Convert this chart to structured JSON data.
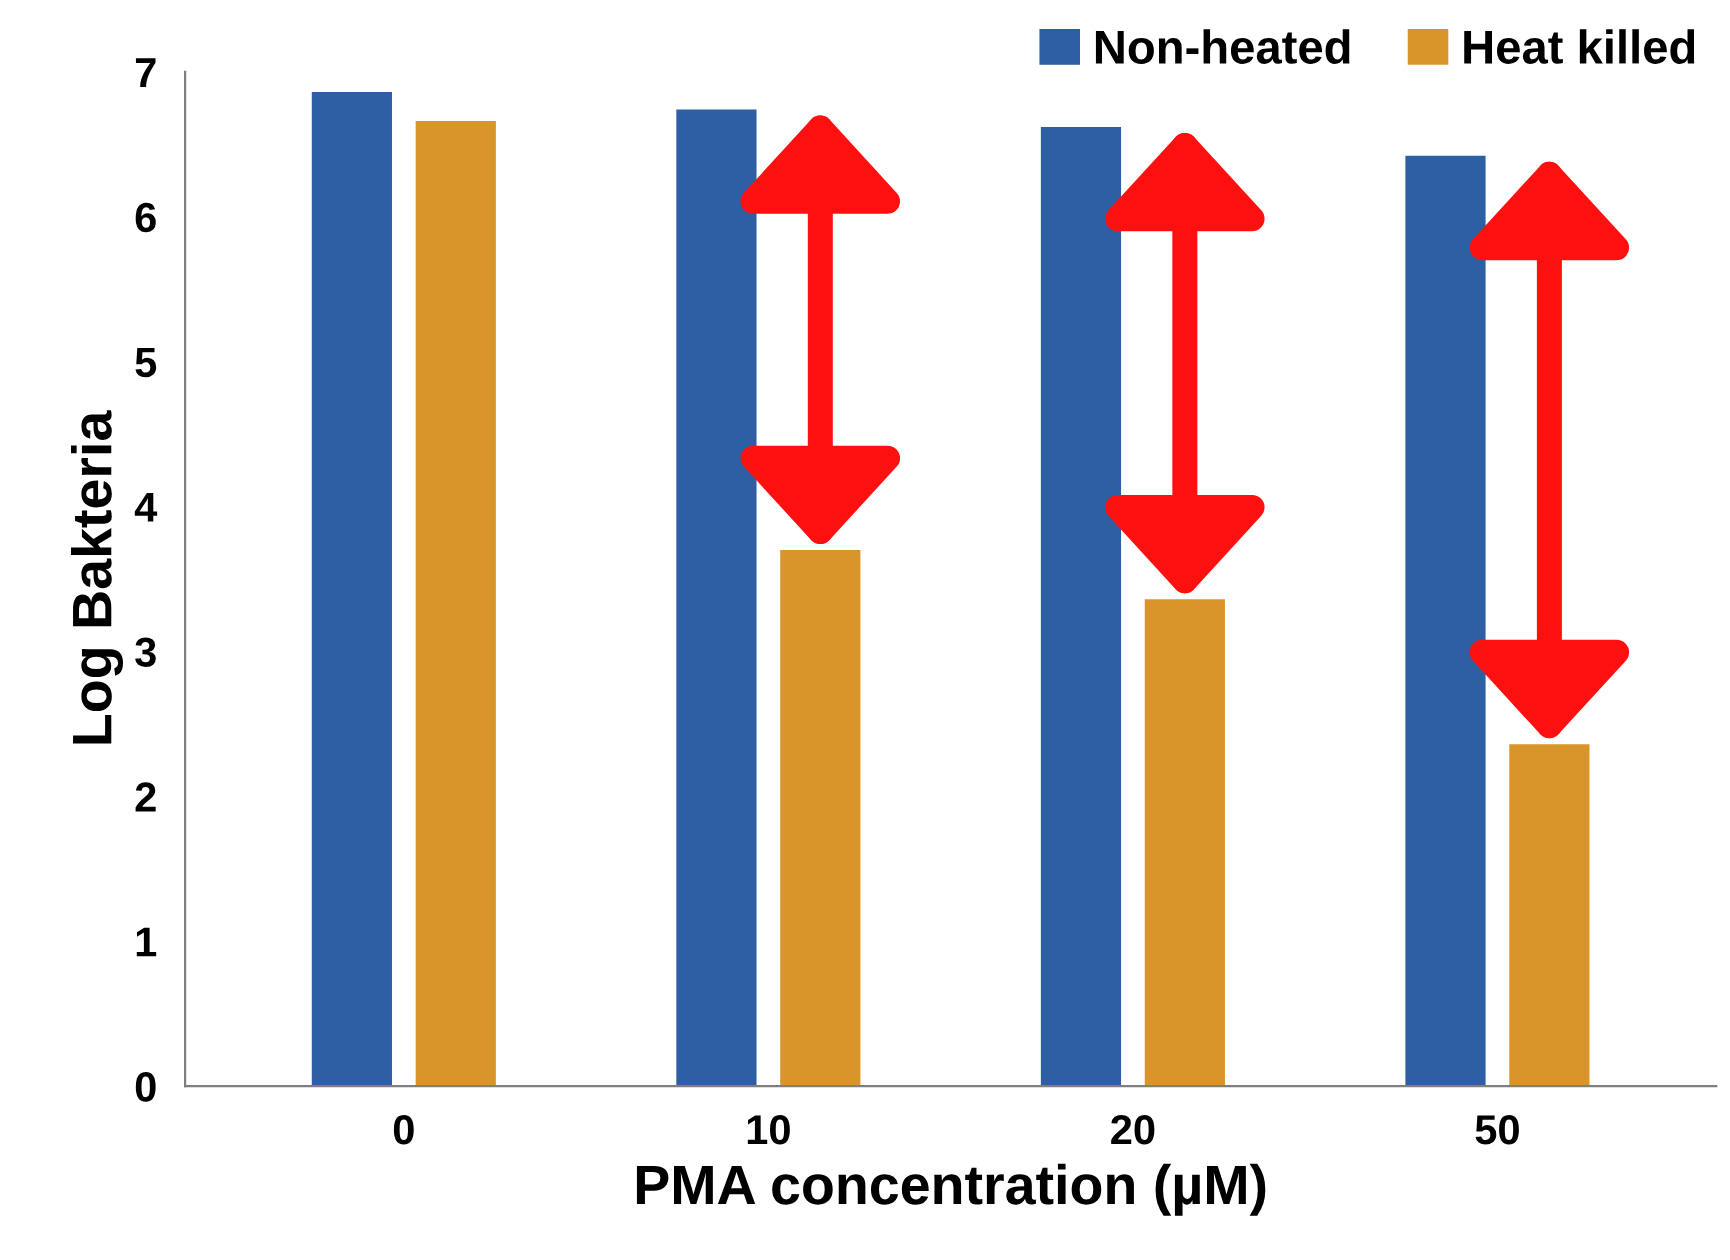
{
  "chart_data": {
    "type": "bar",
    "xlabel": "PMA concentration (µM)",
    "ylabel": "Log Bakteria",
    "categories": [
      "0",
      "10",
      "20",
      "50"
    ],
    "series": [
      {
        "name": "Non-heated",
        "color": "#2e5fa3",
        "values": [
          6.86,
          6.74,
          6.62,
          6.42
        ]
      },
      {
        "name": "Heat killed",
        "color": "#d8952a",
        "values": [
          6.66,
          3.7,
          3.36,
          2.36
        ]
      }
    ],
    "ylim": [
      0,
      7
    ],
    "yticks": [
      0,
      1,
      2,
      3,
      4,
      5,
      6,
      7
    ],
    "grid": false,
    "legend": "top right"
  }
}
